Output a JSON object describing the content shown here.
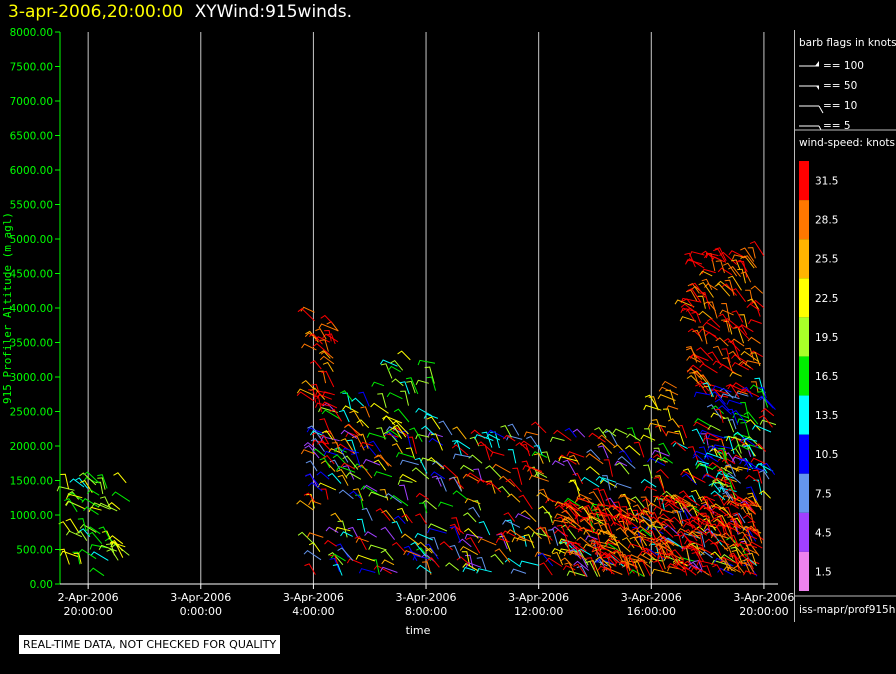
{
  "header": {
    "timestamp": "3-apr-2006,20:00:00",
    "product": "XYWind:915winds."
  },
  "chart_data": {
    "type": "scatter",
    "title": "3-apr-2006,20:00:00 XYWind:915winds.",
    "xlabel": "time",
    "ylabel": "915 Profiler Altitude (m agl)",
    "ylim": [
      0,
      8000
    ],
    "y_ticks": [
      "0.00",
      "500.00",
      "1000.00",
      "1500.00",
      "2000.00",
      "2500.00",
      "3000.00",
      "3500.00",
      "4000.00",
      "4500.00",
      "5000.00",
      "5500.00",
      "6000.00",
      "6500.00",
      "7000.00",
      "7500.00",
      "8000.00"
    ],
    "x_ticks": [
      {
        "date": "2-Apr-2006",
        "time": "20:00:00",
        "hour": -4
      },
      {
        "date": "3-Apr-2006",
        "time": "0:00:00",
        "hour": 0
      },
      {
        "date": "3-Apr-2006",
        "time": "4:00:00",
        "hour": 4
      },
      {
        "date": "3-Apr-2006",
        "time": "8:00:00",
        "hour": 8
      },
      {
        "date": "3-Apr-2006",
        "time": "12:00:00",
        "hour": 12
      },
      {
        "date": "3-Apr-2006",
        "time": "16:00:00",
        "hour": 16
      },
      {
        "date": "3-Apr-2006",
        "time": "20:00:00",
        "hour": 20
      }
    ],
    "xlim_hours": [
      -5,
      20.5
    ],
    "grid": "vertical lines at each time tick",
    "barb_clusters": [
      {
        "t0": -4.9,
        "t1": -2.5,
        "z0": 100,
        "z1": 1500,
        "palette": "green-yellow",
        "density": 55
      },
      {
        "t0": 4.0,
        "t1": 4.9,
        "z0": 2600,
        "z1": 3950,
        "palette": "red",
        "density": 30
      },
      {
        "t0": 4.0,
        "t1": 6.0,
        "z0": 1500,
        "z1": 2700,
        "palette": "mixed",
        "density": 40
      },
      {
        "t0": 4.0,
        "t1": 20.0,
        "z0": 100,
        "z1": 2200,
        "palette": "mixed",
        "density": 520
      },
      {
        "t0": 6.5,
        "t1": 8.5,
        "z0": 2000,
        "z1": 3300,
        "palette": "green-yellow",
        "density": 30
      },
      {
        "t0": 13.0,
        "t1": 20.0,
        "z0": 100,
        "z1": 1200,
        "palette": "red",
        "density": 300
      },
      {
        "t0": 16.2,
        "t1": 17.0,
        "z0": 2000,
        "z1": 3000,
        "palette": "yellow-orange",
        "density": 12
      },
      {
        "t0": 17.5,
        "t1": 20.0,
        "z0": 2700,
        "z1": 4800,
        "palette": "red",
        "density": 130
      },
      {
        "t0": 18.0,
        "t1": 20.5,
        "z0": 1200,
        "z1": 2800,
        "palette": "cool",
        "density": 90
      }
    ]
  },
  "barb_legend": {
    "title": "barb flags in knots",
    "items": [
      {
        "kind": "pennant",
        "label": "== 100"
      },
      {
        "kind": "half-pennant",
        "label": "== 50"
      },
      {
        "kind": "full-barb",
        "label": "== 10"
      },
      {
        "kind": "half-barb",
        "label": "== 5"
      }
    ]
  },
  "speed_legend": {
    "title": "wind-speed: knots",
    "items": [
      {
        "label": "31.5",
        "color": "#ff0000"
      },
      {
        "label": "28.5",
        "color": "#ff7800"
      },
      {
        "label": "25.5",
        "color": "#ffb400"
      },
      {
        "label": "22.5",
        "color": "#ffff00"
      },
      {
        "label": "19.5",
        "color": "#a8ff28"
      },
      {
        "label": "16.5",
        "color": "#00ee00"
      },
      {
        "label": "13.5",
        "color": "#00ffff"
      },
      {
        "label": "10.5",
        "color": "#0000ff"
      },
      {
        "label": "7.5",
        "color": "#6495ed"
      },
      {
        "label": "4.5",
        "color": "#a040ff"
      },
      {
        "label": "1.5",
        "color": "#ee82ee"
      }
    ]
  },
  "source_label": "iss-mapr/prof915h",
  "notice": "REAL-TIME DATA, NOT CHECKED FOR QUALITY",
  "colors": {
    "axis": "#00ff00",
    "timestamp": "#ffff00",
    "grid": "#c8c8c8"
  }
}
